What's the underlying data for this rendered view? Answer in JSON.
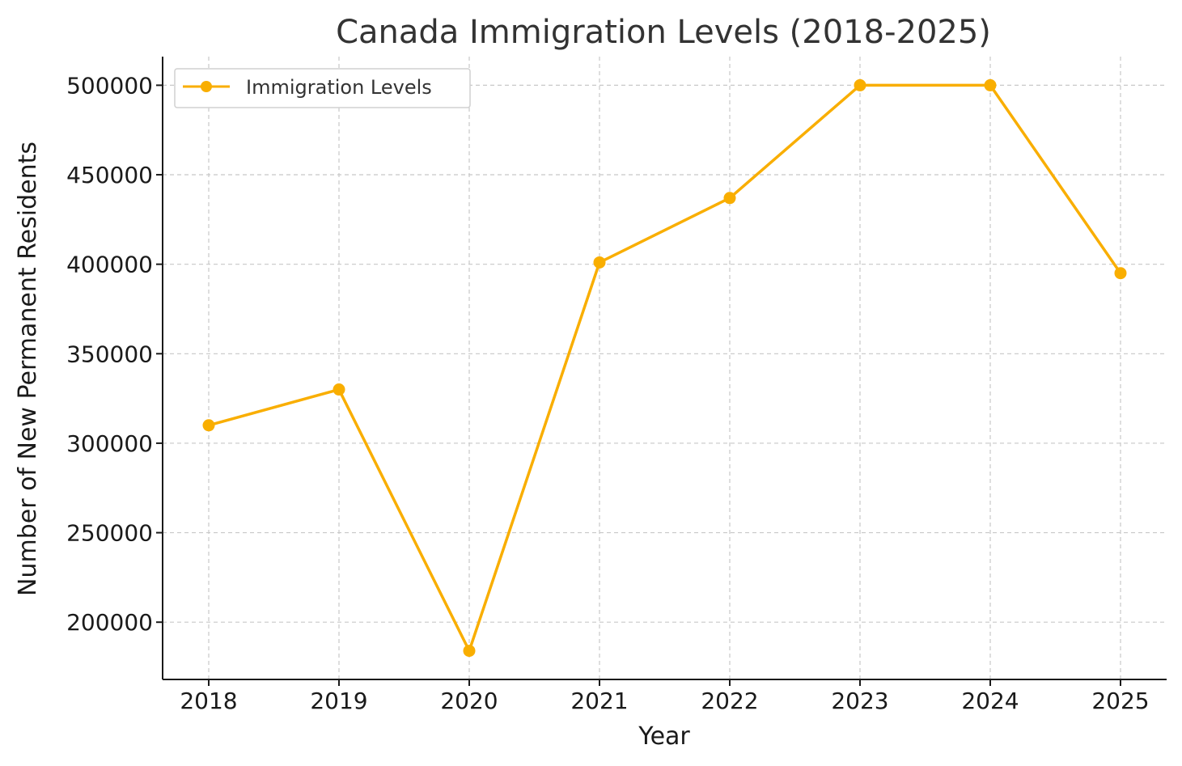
{
  "chart_data": {
    "type": "line",
    "title": "Canada Immigration Levels (2018-2025)",
    "xlabel": "Year",
    "ylabel": "Number of New Permanent Residents",
    "x": [
      "2018",
      "2019",
      "2020",
      "2021",
      "2022",
      "2023",
      "2024",
      "2025"
    ],
    "series": [
      {
        "name": "Immigration Levels",
        "values": [
          310000,
          330000,
          184000,
          401000,
          437000,
          500000,
          500000,
          395000
        ],
        "color": "#F9AE00"
      }
    ],
    "yticks": [
      200000,
      250000,
      300000,
      350000,
      400000,
      450000,
      500000
    ],
    "ylim": [
      168000,
      516000
    ],
    "grid": true,
    "legend_position": "top-left"
  }
}
